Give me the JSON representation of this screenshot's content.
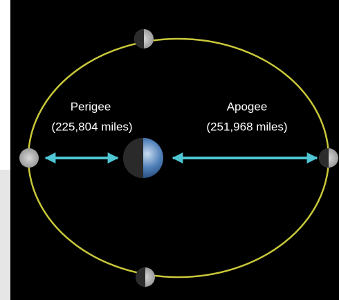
{
  "perigee": {
    "name": "Perigee",
    "distance": "(225,804 miles)"
  },
  "apogee": {
    "name": "Apogee",
    "distance": "(251,968 miles)"
  }
}
